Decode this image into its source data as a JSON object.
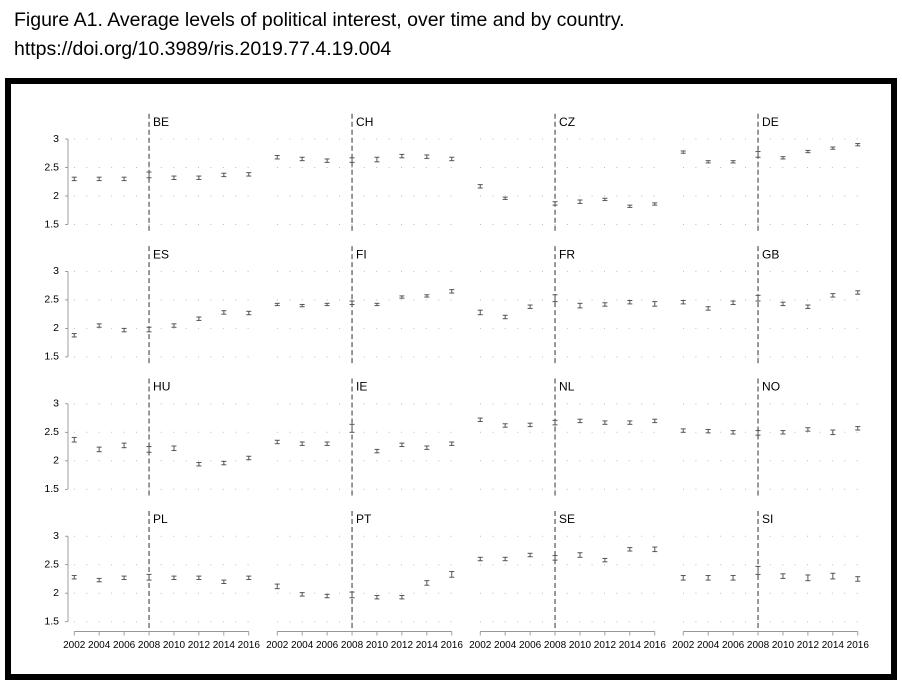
{
  "chart_data": {
    "type": "errorbar",
    "title": "Figure A1. Average levels of political interest, over time and by country.",
    "subtitle": "https://doi.org/10.3989/ris.2019.77.4.19.004",
    "x": [
      2002,
      2004,
      2006,
      2008,
      2010,
      2012,
      2014,
      2016
    ],
    "xlim": [
      2001.5,
      2016.5
    ],
    "xticks": [
      2002,
      2004,
      2006,
      2008,
      2010,
      2012,
      2014,
      2016
    ],
    "ylim": [
      1.38,
      3.25
    ],
    "yticks": [
      1.5,
      2,
      2.5,
      3
    ],
    "reference_x": 2008,
    "color": "#555555",
    "grid": true,
    "series": [
      {
        "name": "BE",
        "values": [
          2.3,
          2.3,
          2.3,
          2.37,
          2.32,
          2.32,
          2.37,
          2.38
        ],
        "errors": [
          0.03,
          0.03,
          0.03,
          0.05,
          0.03,
          0.03,
          0.03,
          0.03
        ]
      },
      {
        "name": "CH",
        "values": [
          2.68,
          2.65,
          2.62,
          2.63,
          2.64,
          2.7,
          2.69,
          2.65
        ],
        "errors": [
          0.03,
          0.03,
          0.03,
          0.04,
          0.04,
          0.03,
          0.03,
          0.03
        ]
      },
      {
        "name": "CZ",
        "values": [
          2.17,
          1.96,
          null,
          1.87,
          1.9,
          1.94,
          1.82,
          1.86
        ],
        "errors": [
          0.03,
          0.02,
          null,
          0.03,
          0.03,
          0.02,
          0.02,
          0.02
        ]
      },
      {
        "name": "DE",
        "values": [
          2.77,
          2.6,
          2.6,
          2.73,
          2.67,
          2.78,
          2.84,
          2.9
        ],
        "errors": [
          0.02,
          0.02,
          0.02,
          0.05,
          0.02,
          0.02,
          0.02,
          0.02
        ]
      },
      {
        "name": "ES",
        "values": [
          1.88,
          2.05,
          1.97,
          1.98,
          2.05,
          2.17,
          2.28,
          2.27
        ],
        "errors": [
          0.03,
          0.03,
          0.03,
          0.04,
          0.03,
          0.03,
          0.03,
          0.03
        ]
      },
      {
        "name": "FI",
        "values": [
          2.42,
          2.4,
          2.42,
          2.45,
          2.42,
          2.55,
          2.57,
          2.65
        ],
        "errors": [
          0.02,
          0.02,
          0.02,
          0.03,
          0.02,
          0.02,
          0.02,
          0.03
        ]
      },
      {
        "name": "FR",
        "values": [
          2.28,
          2.2,
          2.38,
          2.53,
          2.4,
          2.42,
          2.46,
          2.43
        ],
        "errors": [
          0.04,
          0.03,
          0.03,
          0.06,
          0.04,
          0.03,
          0.03,
          0.04
        ]
      },
      {
        "name": "GB",
        "values": [
          2.46,
          2.35,
          2.45,
          2.53,
          2.43,
          2.38,
          2.58,
          2.63
        ],
        "errors": [
          0.03,
          0.03,
          0.03,
          0.05,
          0.03,
          0.03,
          0.03,
          0.03
        ]
      },
      {
        "name": "HU",
        "values": [
          2.37,
          2.2,
          2.27,
          2.2,
          2.22,
          1.94,
          1.96,
          2.05
        ],
        "errors": [
          0.04,
          0.04,
          0.04,
          0.05,
          0.04,
          0.03,
          0.03,
          0.03
        ]
      },
      {
        "name": "IE",
        "values": [
          2.33,
          2.3,
          2.3,
          2.57,
          2.17,
          2.28,
          2.23,
          2.3
        ],
        "errors": [
          0.03,
          0.03,
          0.03,
          0.07,
          0.03,
          0.03,
          0.03,
          0.03
        ]
      },
      {
        "name": "NL",
        "values": [
          2.72,
          2.62,
          2.63,
          2.67,
          2.7,
          2.67,
          2.67,
          2.7
        ],
        "errors": [
          0.03,
          0.03,
          0.03,
          0.04,
          0.03,
          0.03,
          0.03,
          0.03
        ]
      },
      {
        "name": "NO",
        "values": [
          2.53,
          2.52,
          2.5,
          2.49,
          2.5,
          2.55,
          2.5,
          2.57
        ],
        "errors": [
          0.03,
          0.03,
          0.03,
          0.04,
          0.03,
          0.03,
          0.04,
          0.03
        ]
      },
      {
        "name": "PL",
        "values": [
          2.28,
          2.23,
          2.27,
          2.28,
          2.27,
          2.27,
          2.2,
          2.27
        ],
        "errors": [
          0.03,
          0.03,
          0.03,
          0.05,
          0.03,
          0.03,
          0.03,
          0.03
        ]
      },
      {
        "name": "PT",
        "values": [
          2.12,
          1.98,
          1.95,
          1.97,
          1.93,
          1.93,
          2.18,
          2.33
        ],
        "errors": [
          0.04,
          0.03,
          0.03,
          0.05,
          0.03,
          0.03,
          0.04,
          0.05
        ]
      },
      {
        "name": "SE",
        "values": [
          2.6,
          2.6,
          2.67,
          2.62,
          2.67,
          2.58,
          2.77,
          2.77
        ],
        "errors": [
          0.03,
          0.03,
          0.03,
          0.04,
          0.04,
          0.03,
          0.03,
          0.04
        ]
      },
      {
        "name": "SI",
        "values": [
          2.27,
          2.27,
          2.27,
          2.4,
          2.3,
          2.27,
          2.3,
          2.25
        ],
        "errors": [
          0.04,
          0.04,
          0.04,
          0.07,
          0.04,
          0.05,
          0.05,
          0.04
        ]
      }
    ]
  }
}
